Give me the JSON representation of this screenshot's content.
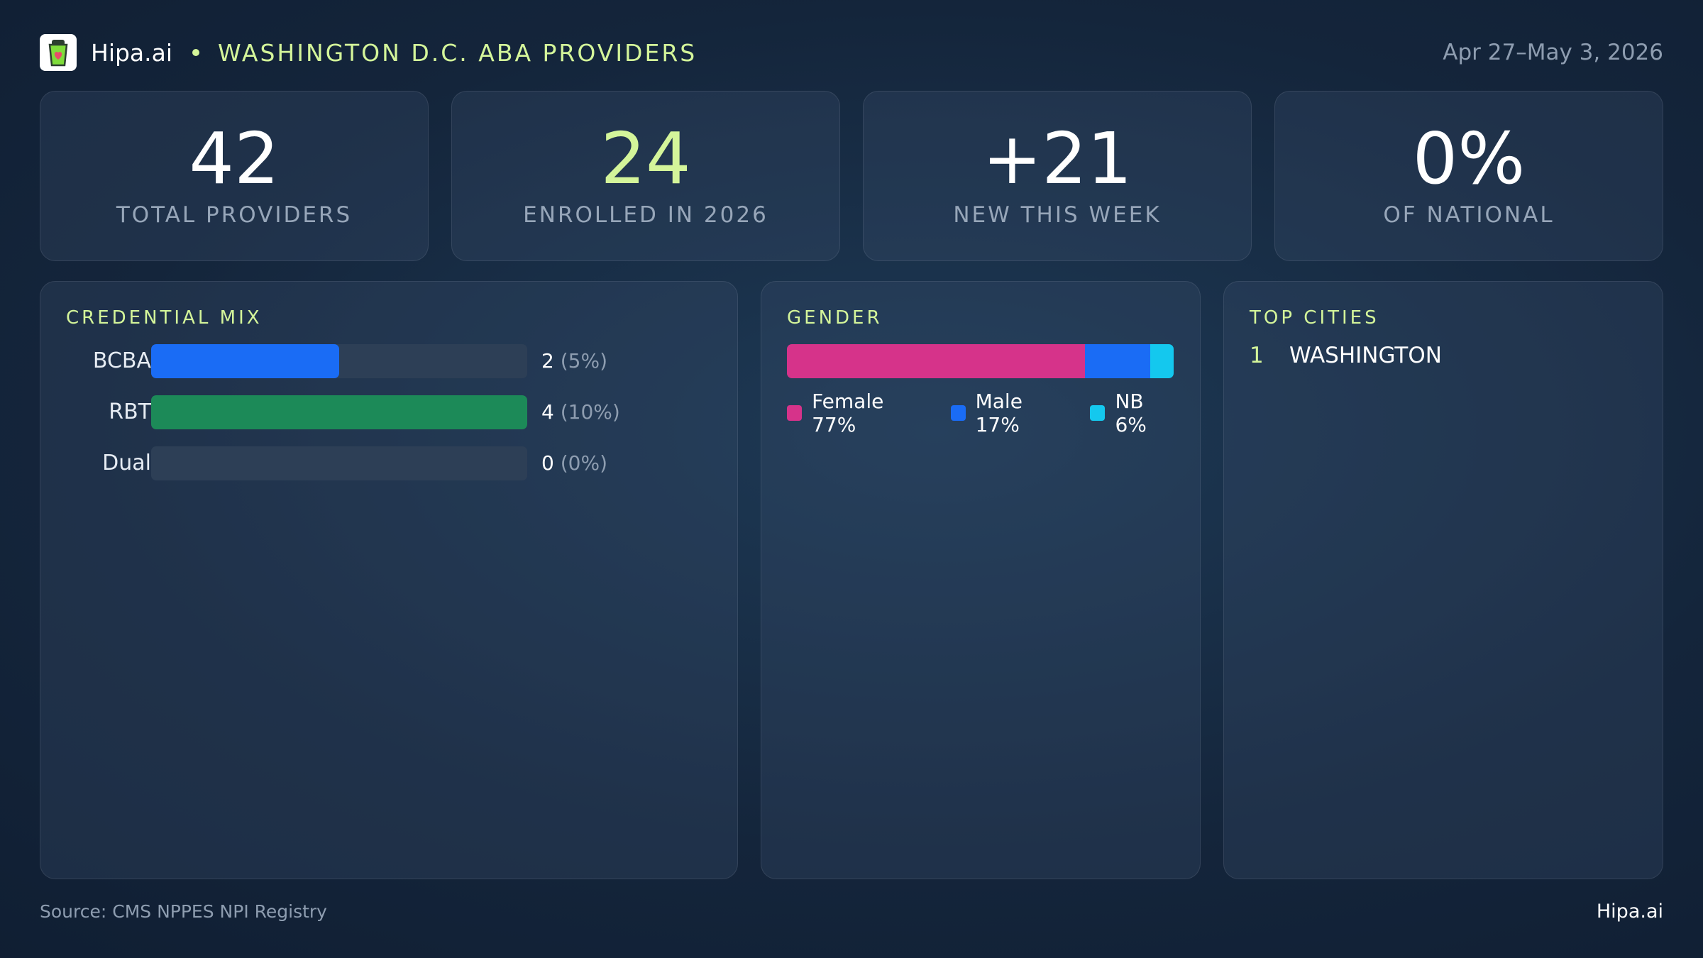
{
  "header": {
    "brand": "Hipa.ai",
    "region": "WASHINGTON D.C. ABA PROVIDERS",
    "date_range": "Apr 27–May 3, 2026",
    "logo_icon": "clipboard-heart-icon"
  },
  "stats": [
    {
      "value": "42",
      "label": "TOTAL PROVIDERS"
    },
    {
      "value": "24",
      "label": "ENROLLED IN 2026"
    },
    {
      "value": "+21",
      "label": "NEW THIS WEEK"
    },
    {
      "value": "0%",
      "label": "OF NATIONAL"
    }
  ],
  "credential_mix": {
    "title": "CREDENTIAL MIX",
    "rows": [
      {
        "name": "BCBA",
        "count": "2",
        "pct": "(5%)",
        "fill": 0.5,
        "color": "#1a6cf5"
      },
      {
        "name": "RBT",
        "count": "4",
        "pct": "(10%)",
        "fill": 1.0,
        "color": "#1c8a58"
      },
      {
        "name": "Dual",
        "count": "0",
        "pct": "(0%)",
        "fill": 0.0,
        "color": "#1a6cf5"
      }
    ]
  },
  "gender": {
    "title": "GENDER",
    "segments": [
      {
        "label": "Female 77%",
        "share": 77,
        "color": "#d6338a"
      },
      {
        "label": "Male 17%",
        "share": 17,
        "color": "#1a6cf5"
      },
      {
        "label": "NB 6%",
        "share": 6,
        "color": "#14c8ee"
      }
    ]
  },
  "top_cities": {
    "title": "TOP CITIES",
    "items": [
      {
        "rank": "1",
        "name": "WASHINGTON"
      }
    ]
  },
  "footer": {
    "source": "Source: CMS NPPES NPI Registry",
    "brand": "Hipa.ai"
  }
}
